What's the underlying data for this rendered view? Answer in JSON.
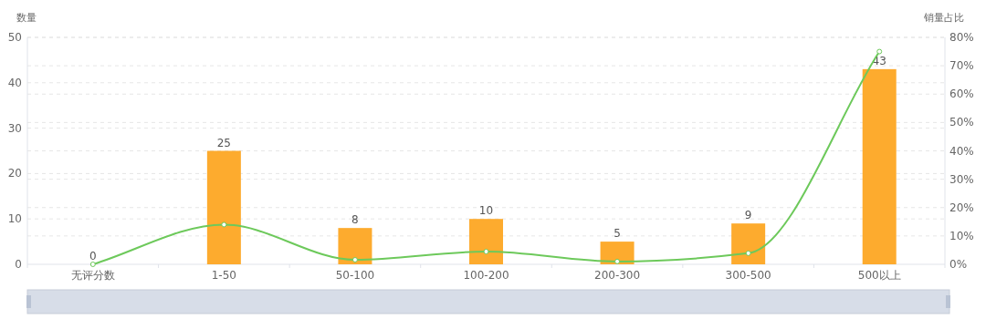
{
  "chart_data": {
    "type": "bar",
    "ylabel": "数量",
    "y2label": "销量占比",
    "categories": [
      "无评分数",
      "1-50",
      "50-100",
      "100-200",
      "200-300",
      "300-500",
      "500以上"
    ],
    "series": [
      {
        "color": "#fdab2e",
        "values": [
          0,
          25,
          8,
          10,
          5,
          9,
          43
        ],
        "value_labels": [
          "0",
          "25",
          "8",
          "10",
          "5",
          "9",
          "43"
        ]
      },
      {
        "type": "line",
        "axis": "y2",
        "color": "#6dc95b",
        "values": [
          0,
          14,
          1.6,
          4.5,
          1,
          3.9,
          75
        ]
      }
    ],
    "marker": "circle",
    "grid": true,
    "ylim": [
      0,
      50
    ],
    "yticks": [
      0,
      10,
      20,
      30,
      40,
      50
    ],
    "y2lim": [
      0,
      80
    ],
    "y2ticks": [
      {
        "value": 0,
        "label": "0%"
      },
      {
        "value": 10,
        "label": "10%"
      },
      {
        "value": 20,
        "label": "20%"
      },
      {
        "value": 30,
        "label": "30%"
      },
      {
        "value": 40,
        "label": "40%"
      },
      {
        "value": 50,
        "label": "50%"
      },
      {
        "value": 60,
        "label": "60%"
      },
      {
        "value": 70,
        "label": "70%"
      },
      {
        "value": 80,
        "label": "80%"
      }
    ]
  }
}
